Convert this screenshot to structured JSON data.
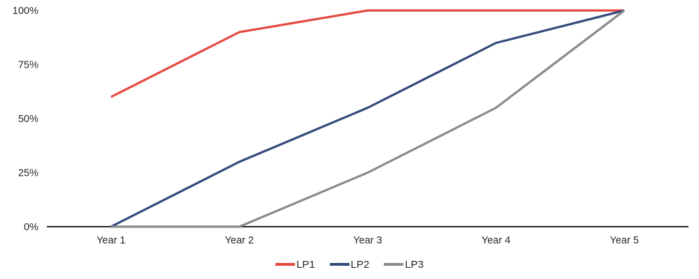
{
  "chart_data": {
    "type": "line",
    "title": "",
    "xlabel": "",
    "ylabel": "",
    "categories": [
      "Year 1",
      "Year 2",
      "Year 3",
      "Year 4",
      "Year 5"
    ],
    "series": [
      {
        "name": "LP1",
        "color": "#E5493F",
        "values": [
          60,
          90,
          100,
          100,
          100
        ]
      },
      {
        "name": "LP2",
        "color": "#33497B",
        "values": [
          0,
          30,
          55,
          85,
          100
        ]
      },
      {
        "name": "LP3",
        "color": "#8A8A8A",
        "values": [
          0,
          0,
          25,
          55,
          100
        ]
      }
    ],
    "ylim": [
      0,
      100
    ],
    "y_ticks": [
      0,
      25,
      50,
      75,
      100
    ],
    "y_tick_labels": [
      "0%",
      "25%",
      "50%",
      "75%",
      "100%"
    ],
    "grid": false,
    "legend_position": "bottom-center",
    "axis_color": "#262626",
    "text_color": "#262626",
    "background": "#FFFFFF"
  }
}
